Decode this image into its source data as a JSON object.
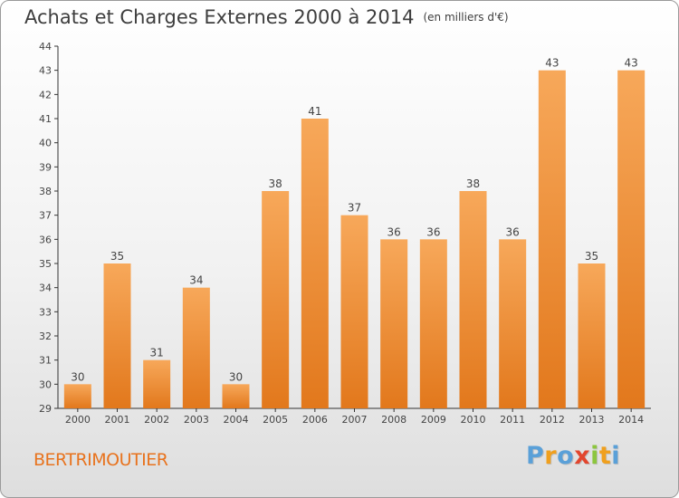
{
  "title": "Achats et Charges Externes 2000 à 2014",
  "title_unit": "(en milliers d'€)",
  "commune": "BERTRIMOUTIER",
  "brand": {
    "letters": [
      "P",
      "r",
      "o",
      "x",
      "i",
      "t",
      "i"
    ],
    "colors": [
      "#5aa0d8",
      "#f0a01e",
      "#5aa0d8",
      "#e2462e",
      "#8cc63e",
      "#f0a01e",
      "#5aa0d8"
    ]
  },
  "colors": {
    "bar_top": "#f7a85a",
    "bar_bottom": "#e2781c",
    "axis": "#333333",
    "text": "#444444"
  },
  "chart_data": {
    "type": "bar",
    "categories": [
      "2000",
      "2001",
      "2002",
      "2003",
      "2004",
      "2005",
      "2006",
      "2007",
      "2008",
      "2009",
      "2010",
      "2011",
      "2012",
      "2013",
      "2014"
    ],
    "values": [
      30,
      35,
      31,
      34,
      30,
      38,
      41,
      37,
      36,
      36,
      38,
      36,
      43,
      35,
      43
    ],
    "ylim": [
      29,
      44
    ],
    "yticks": [
      29,
      30,
      31,
      32,
      33,
      34,
      35,
      36,
      37,
      38,
      39,
      40,
      41,
      42,
      43,
      44
    ],
    "grid": false
  }
}
